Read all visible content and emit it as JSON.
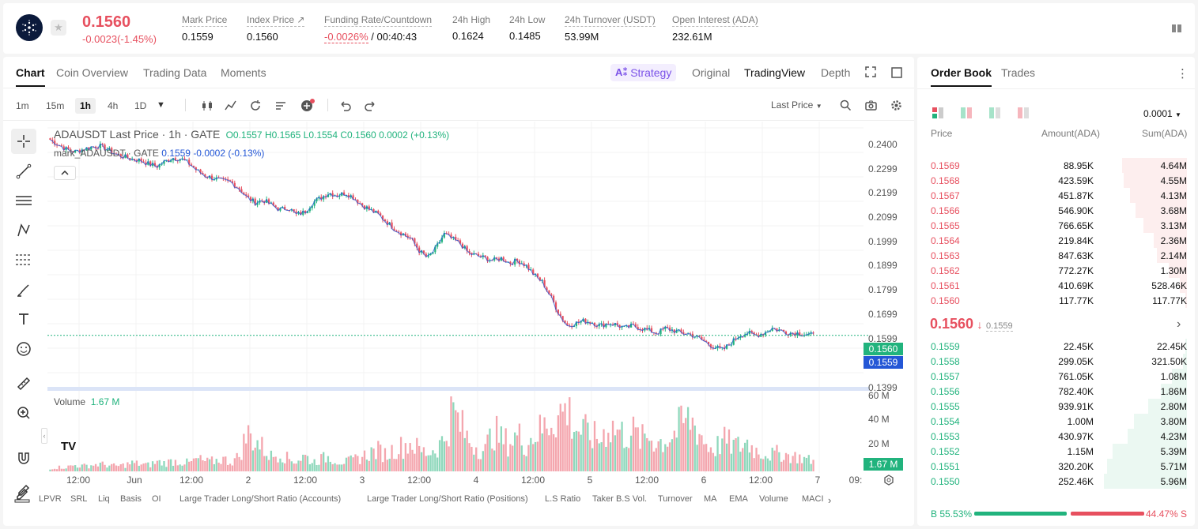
{
  "ticker": {
    "last_price": "0.1560",
    "change": "-0.0023(-1.45%)",
    "stats": [
      {
        "label": "Mark Price",
        "value": "0.1559"
      },
      {
        "label": "Index Price",
        "value": "0.1560"
      },
      {
        "label": "Funding Rate/Countdown",
        "value_red": "-0.0026%",
        "value": " / 00:40:43"
      },
      {
        "label": "24h High",
        "value": "0.1624"
      },
      {
        "label": "24h Low",
        "value": "0.1485"
      },
      {
        "label": "24h Turnover (USDT)",
        "value": "53.99M"
      },
      {
        "label": "Open Interest (ADA)",
        "value": "232.61M"
      }
    ]
  },
  "chart_tabs": [
    "Chart",
    "Coin Overview",
    "Trading Data",
    "Moments"
  ],
  "view_tabs": {
    "strategy": "Strategy",
    "original": "Original",
    "tradingview": "TradingView",
    "depth": "Depth"
  },
  "timeframes": [
    "1m",
    "15m",
    "1h",
    "4h",
    "1D"
  ],
  "price_source": "Last Price",
  "legend": {
    "symbol": "ADAUSDT Last Price",
    "interval": "1h",
    "exchange": "GATE",
    "o": "0.1557",
    "h": "0.1565",
    "l": "0.1554",
    "c": "0.1560",
    "chg": "0.0002 (+0.13%)",
    "mark_label": "mark_ADAUSDT · GATE",
    "mark_value": "0.1559",
    "mark_chg": "-0.0002 (-0.13%)"
  },
  "volume": {
    "label": "Volume",
    "value": "1.67 M",
    "badge": "1.67 M",
    "ticks": [
      "60 M",
      "40 M",
      "20 M"
    ]
  },
  "price_axis": [
    "0.2400",
    "0.2299",
    "0.2199",
    "0.2099",
    "0.1999",
    "0.1899",
    "0.1799",
    "0.1699",
    "0.1599",
    "0.1399"
  ],
  "price_badges": {
    "last": "0.1560",
    "mark": "0.1559"
  },
  "time_axis": [
    "12:00",
    "Jun",
    "12:00",
    "2",
    "12:00",
    "3",
    "12:00",
    "4",
    "12:00",
    "5",
    "12:00",
    "6",
    "12:00",
    "7",
    "09:"
  ],
  "indicators": [
    "LPVR",
    "SRL",
    "Liq",
    "Basis",
    "OI",
    "Large Trader Long/Short Ratio (Accounts)",
    "Large Trader Long/Short Ratio (Positions)",
    "L.S Ratio",
    "Taker B.S Vol.",
    "Turnover",
    "MA",
    "EMA",
    "Volume",
    "MACI"
  ],
  "chart_data": {
    "type": "candlestick",
    "title": "ADAUSDT Last Price · 1h · GATE",
    "ylim": [
      0.135,
      0.2445
    ],
    "close_path": [
      0.237,
      0.235,
      0.233,
      0.232,
      0.233,
      0.234,
      0.2345,
      0.233,
      0.231,
      0.23,
      0.229,
      0.2285,
      0.227,
      0.226,
      0.228,
      0.2295,
      0.229,
      0.227,
      0.224,
      0.222,
      0.221,
      0.22,
      0.2195,
      0.217,
      0.213,
      0.211,
      0.212,
      0.21,
      0.208,
      0.209,
      0.206,
      0.207,
      0.211,
      0.213,
      0.215,
      0.214,
      0.215,
      0.213,
      0.21,
      0.208,
      0.206,
      0.203,
      0.2,
      0.198,
      0.196,
      0.191,
      0.188,
      0.192,
      0.198,
      0.196,
      0.194,
      0.19,
      0.189,
      0.188,
      0.187,
      0.188,
      0.186,
      0.187,
      0.185,
      0.181,
      0.178,
      0.172,
      0.165,
      0.16,
      0.161,
      0.162,
      0.1615,
      0.16,
      0.161,
      0.1605,
      0.159,
      0.16,
      0.159,
      0.158,
      0.157,
      0.159,
      0.158,
      0.157,
      0.1565,
      0.155,
      0.153,
      0.151,
      0.15,
      0.153,
      0.156,
      0.157,
      0.156,
      0.157,
      0.159,
      0.158,
      0.157,
      0.157,
      0.1565,
      0.156
    ],
    "volume_path": [
      3,
      4,
      4,
      6,
      5,
      6,
      7,
      6,
      5,
      6,
      8,
      7,
      6,
      9,
      8,
      10,
      9,
      8,
      12,
      9,
      10,
      12,
      9,
      14,
      36,
      30,
      22,
      14,
      18,
      12,
      10,
      15,
      9,
      12,
      14,
      10,
      9,
      11,
      14,
      18,
      20,
      16,
      22,
      24,
      28,
      20,
      18,
      22,
      30,
      58,
      44,
      30,
      24,
      20,
      40,
      30,
      28,
      35,
      26,
      36,
      40,
      50,
      55,
      60,
      42,
      38,
      34,
      30,
      44,
      40,
      35,
      38,
      30,
      34,
      28,
      30,
      36,
      45,
      50,
      40,
      25,
      22,
      30,
      26,
      24,
      28,
      20,
      18,
      16,
      18,
      15,
      14,
      12,
      10
    ]
  },
  "orderbook": {
    "tabs": [
      "Order Book",
      "Trades"
    ],
    "precision": "0.0001",
    "headers": {
      "price": "Price",
      "amount": "Amount(ADA)",
      "sum": "Sum(ADA)"
    },
    "asks": [
      {
        "price": "0.1569",
        "amount": "88.95K",
        "sum": "4.64M",
        "depth": 0.78
      },
      {
        "price": "0.1568",
        "amount": "423.59K",
        "sum": "4.55M",
        "depth": 0.76
      },
      {
        "price": "0.1567",
        "amount": "451.87K",
        "sum": "4.13M",
        "depth": 0.69
      },
      {
        "price": "0.1566",
        "amount": "546.90K",
        "sum": "3.68M",
        "depth": 0.62
      },
      {
        "price": "0.1565",
        "amount": "766.65K",
        "sum": "3.13M",
        "depth": 0.52
      },
      {
        "price": "0.1564",
        "amount": "219.84K",
        "sum": "2.36M",
        "depth": 0.4
      },
      {
        "price": "0.1563",
        "amount": "847.63K",
        "sum": "2.14M",
        "depth": 0.36
      },
      {
        "price": "0.1562",
        "amount": "772.27K",
        "sum": "1.30M",
        "depth": 0.22
      },
      {
        "price": "0.1561",
        "amount": "410.69K",
        "sum": "528.46K",
        "depth": 0.09
      },
      {
        "price": "0.1560",
        "amount": "117.77K",
        "sum": "117.77K",
        "depth": 0.02
      }
    ],
    "mid_price": "0.1560",
    "mid_mark": "0.1559",
    "bids": [
      {
        "price": "0.1559",
        "amount": "22.45K",
        "sum": "22.45K",
        "depth": 0.004
      },
      {
        "price": "0.1558",
        "amount": "299.05K",
        "sum": "321.50K",
        "depth": 0.05
      },
      {
        "price": "0.1557",
        "amount": "761.05K",
        "sum": "1.08M",
        "depth": 0.18
      },
      {
        "price": "0.1556",
        "amount": "782.40K",
        "sum": "1.86M",
        "depth": 0.31
      },
      {
        "price": "0.1555",
        "amount": "939.91K",
        "sum": "2.80M",
        "depth": 0.47
      },
      {
        "price": "0.1554",
        "amount": "1.00M",
        "sum": "3.80M",
        "depth": 0.64
      },
      {
        "price": "0.1553",
        "amount": "430.97K",
        "sum": "4.23M",
        "depth": 0.71
      },
      {
        "price": "0.1552",
        "amount": "1.15M",
        "sum": "5.39M",
        "depth": 0.9
      },
      {
        "price": "0.1551",
        "amount": "320.20K",
        "sum": "5.71M",
        "depth": 0.96
      },
      {
        "price": "0.1550",
        "amount": "252.46K",
        "sum": "5.96M",
        "depth": 1.0
      }
    ],
    "buy_label": "B 55.53%",
    "sell_label": "44.47% S",
    "buy_ratio": 0.5553
  },
  "colors": {
    "up": "#21b37d",
    "down": "#e7505f",
    "mark": "#2457d6",
    "up_light": "#ebf8f2",
    "down_light": "#fdeeee"
  }
}
